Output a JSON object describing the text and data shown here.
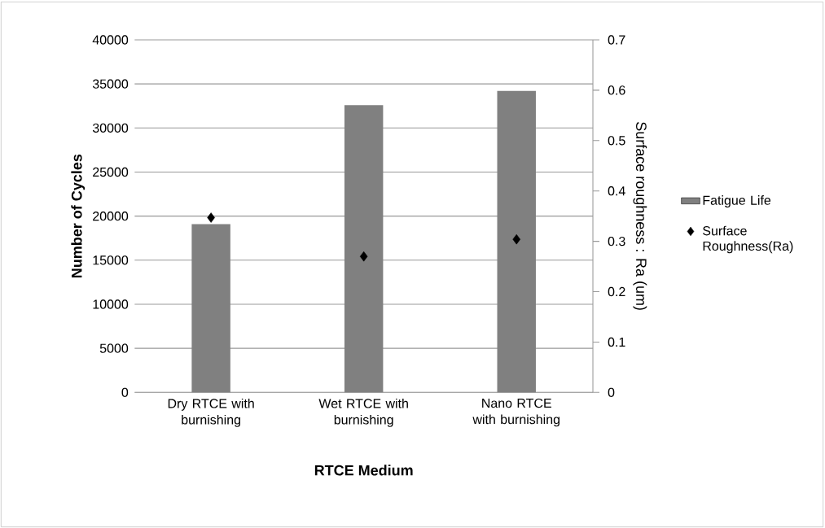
{
  "chart_data": {
    "type": "bar",
    "xlabel": "RTCE Medium",
    "ylabel": "Number of Cycles",
    "y2label": "Surface roughness : Ra (um)",
    "categories": [
      "Dry RTCE with burnishing",
      "Wet RTCE with burnishing",
      "Nano RTCE with burnishing"
    ],
    "series": [
      {
        "name": "Fatigue Life",
        "color": "#808080",
        "values": [
          19100,
          32600,
          34200
        ]
      },
      {
        "name": "Surface Roughness(Ra)",
        "type": "scatter",
        "axis": "y2",
        "color": "#000000",
        "values": [
          0.347,
          0.27,
          0.304
        ]
      }
    ],
    "marker": "diamond",
    "ylim": [
      0,
      40000
    ],
    "yticks": [
      0,
      5000,
      10000,
      15000,
      20000,
      25000,
      30000,
      35000,
      40000
    ],
    "y2lim": [
      0,
      0.7
    ],
    "y2ticks": [
      0,
      0.1,
      0.2,
      0.3,
      0.4,
      0.5,
      0.6,
      0.7
    ],
    "grid": "y",
    "legend": "right"
  }
}
